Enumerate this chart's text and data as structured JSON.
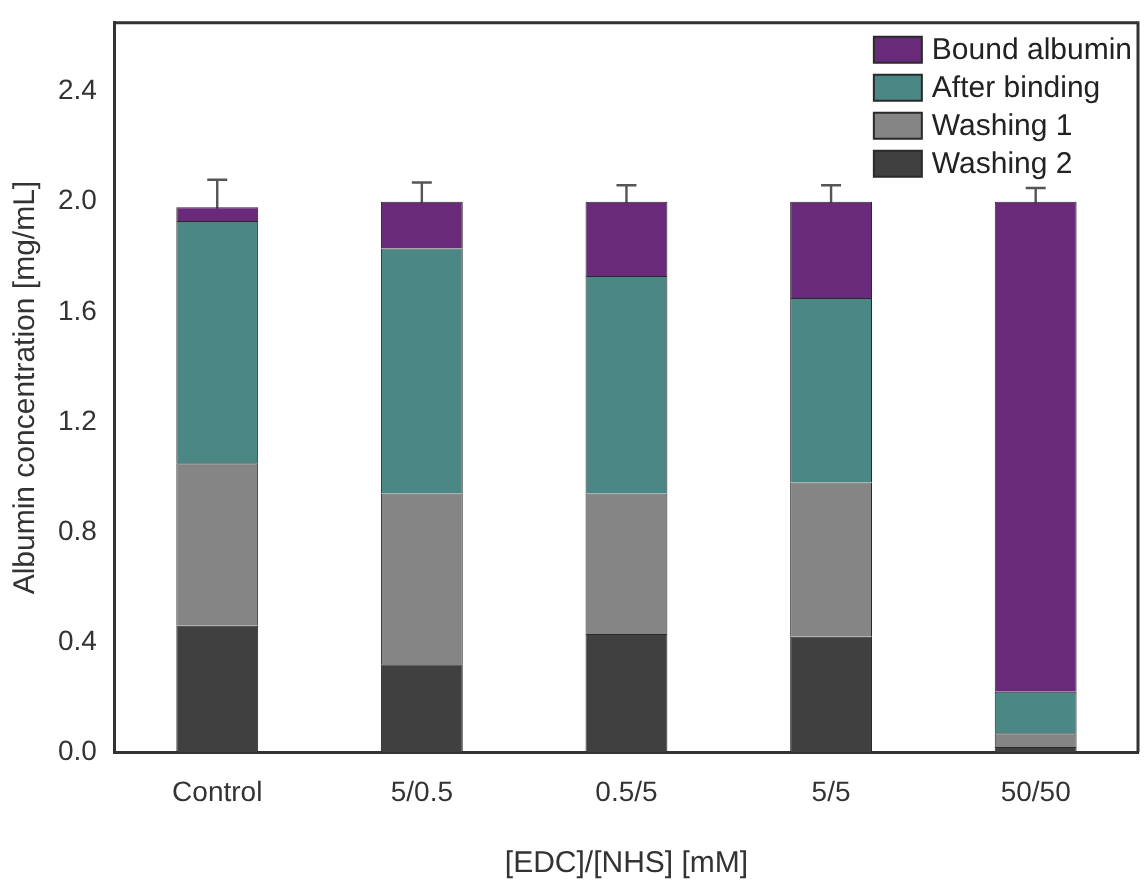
{
  "chart_data": {
    "type": "bar",
    "stacked": true,
    "xlabel": "[EDC]/[NHS] [mM]",
    "ylabel": "Albumin concentration [mg/mL]",
    "categories": [
      "Control",
      "5/0.5",
      "0.5/5",
      "5/5",
      "50/50"
    ],
    "series": [
      {
        "name": "Washing 2",
        "color": "#404040",
        "values": [
          0.46,
          0.32,
          0.43,
          0.42,
          0.02
        ]
      },
      {
        "name": "Washing 1",
        "color": "#858585",
        "values": [
          0.59,
          0.62,
          0.51,
          0.56,
          0.05
        ]
      },
      {
        "name": "After binding",
        "color": "#4a8785",
        "values": [
          0.88,
          0.89,
          0.79,
          0.67,
          0.15
        ]
      },
      {
        "name": "Bound albumin",
        "color": "#6a2a7a",
        "values": [
          0.05,
          0.17,
          0.27,
          0.35,
          1.78
        ],
        "errors": [
          0.1,
          0.07,
          0.06,
          0.06,
          0.05
        ]
      }
    ],
    "ylim": [
      0,
      2.65
    ],
    "yticks": [
      {
        "value": 0,
        "label": "0.0"
      },
      {
        "value": 0.4,
        "label": "0.4"
      },
      {
        "value": 0.8,
        "label": "0.8"
      },
      {
        "value": 1.2,
        "label": "1.2"
      },
      {
        "value": 1.6,
        "label": "1.6"
      },
      {
        "value": 2.0,
        "label": "2.0"
      },
      {
        "value": 2.4,
        "label": "2.4"
      }
    ],
    "grid": false,
    "legend": "top right"
  }
}
